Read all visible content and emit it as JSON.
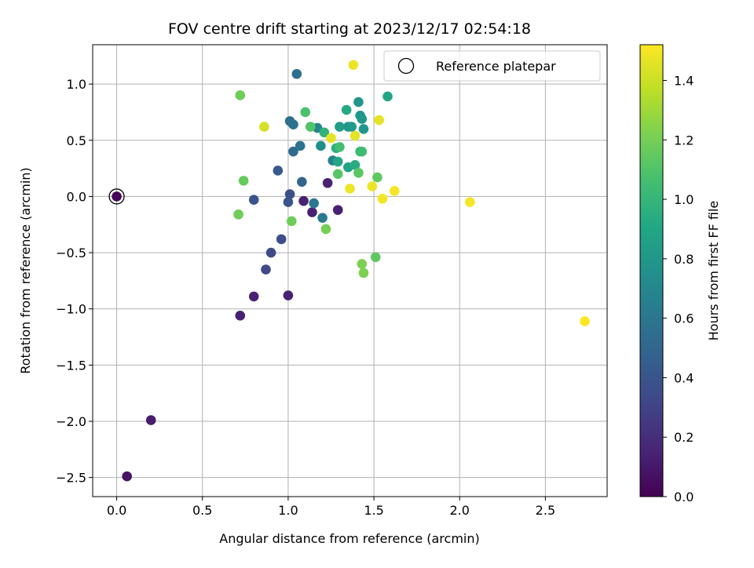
{
  "chart_data": {
    "type": "scatter",
    "title": "FOV centre drift starting at 2023/12/17 02:54:18",
    "xlabel": "Angular distance from reference (arcmin)",
    "ylabel": "Rotation from reference (arcmin)",
    "colorbar_label": "Hours from first FF file",
    "xlim": [
      -0.14,
      2.86
    ],
    "ylim": [
      -2.67,
      1.35
    ],
    "clim": [
      0.0,
      1.52
    ],
    "xticks": [
      "0.0",
      "0.5",
      "1.0",
      "1.5",
      "2.0",
      "2.5"
    ],
    "xtick_values": [
      0.0,
      0.5,
      1.0,
      1.5,
      2.0,
      2.5
    ],
    "yticks": [
      "−2.5",
      "−2.0",
      "−1.5",
      "−1.0",
      "−0.5",
      "0.0",
      "0.5",
      "1.0"
    ],
    "ytick_values": [
      -2.5,
      -2.0,
      -1.5,
      -1.0,
      -0.5,
      0.0,
      0.5,
      1.0
    ],
    "cbar_ticks": [
      "0.0",
      "0.2",
      "0.4",
      "0.6",
      "0.8",
      "1.0",
      "1.2",
      "1.4"
    ],
    "cbar_tick_values": [
      0.0,
      0.2,
      0.4,
      0.6,
      0.8,
      1.0,
      1.2,
      1.4
    ],
    "grid": true,
    "colormap": "viridis",
    "legend": {
      "label": "Reference platepar",
      "position": "upper right"
    },
    "reference_point": {
      "x": 0.0,
      "y": 0.0
    },
    "points": [
      {
        "x": 0.0,
        "y": 0.0,
        "c": 0.02
      },
      {
        "x": 0.06,
        "y": -2.49,
        "c": 0.08
      },
      {
        "x": 0.2,
        "y": -1.99,
        "c": 0.12
      },
      {
        "x": 0.72,
        "y": -1.06,
        "c": 0.14
      },
      {
        "x": 0.8,
        "y": -0.89,
        "c": 0.14
      },
      {
        "x": 1.0,
        "y": -0.88,
        "c": 0.14
      },
      {
        "x": 1.09,
        "y": -0.04,
        "c": 0.14
      },
      {
        "x": 1.14,
        "y": -0.14,
        "c": 0.14
      },
      {
        "x": 1.23,
        "y": 0.12,
        "c": 0.14
      },
      {
        "x": 1.29,
        "y": -0.12,
        "c": 0.14
      },
      {
        "x": 0.87,
        "y": -0.65,
        "c": 0.34
      },
      {
        "x": 0.9,
        "y": -0.5,
        "c": 0.34
      },
      {
        "x": 0.96,
        "y": -0.38,
        "c": 0.36
      },
      {
        "x": 1.01,
        "y": 0.02,
        "c": 0.36
      },
      {
        "x": 0.8,
        "y": -0.03,
        "c": 0.4
      },
      {
        "x": 1.0,
        "y": -0.05,
        "c": 0.4
      },
      {
        "x": 0.94,
        "y": 0.23,
        "c": 0.42
      },
      {
        "x": 1.08,
        "y": 0.13,
        "c": 0.5
      },
      {
        "x": 1.03,
        "y": 0.4,
        "c": 0.52
      },
      {
        "x": 1.05,
        "y": 1.09,
        "c": 0.55
      },
      {
        "x": 1.01,
        "y": 0.67,
        "c": 0.55
      },
      {
        "x": 1.03,
        "y": 0.64,
        "c": 0.56
      },
      {
        "x": 1.07,
        "y": 0.45,
        "c": 0.58
      },
      {
        "x": 1.15,
        "y": -0.06,
        "c": 0.6
      },
      {
        "x": 1.2,
        "y": -0.19,
        "c": 0.62
      },
      {
        "x": 1.26,
        "y": 0.32,
        "c": 0.66
      },
      {
        "x": 1.17,
        "y": 0.61,
        "c": 0.68
      },
      {
        "x": 1.19,
        "y": 0.45,
        "c": 0.74
      },
      {
        "x": 1.35,
        "y": 0.62,
        "c": 0.78
      },
      {
        "x": 1.41,
        "y": 0.84,
        "c": 0.8
      },
      {
        "x": 1.42,
        "y": 0.72,
        "c": 0.8
      },
      {
        "x": 1.43,
        "y": 0.69,
        "c": 0.8
      },
      {
        "x": 1.44,
        "y": 0.6,
        "c": 0.8
      },
      {
        "x": 1.37,
        "y": 0.62,
        "c": 0.82
      },
      {
        "x": 1.3,
        "y": 0.62,
        "c": 0.84
      },
      {
        "x": 1.35,
        "y": 0.26,
        "c": 0.88
      },
      {
        "x": 1.29,
        "y": 0.31,
        "c": 0.9
      },
      {
        "x": 1.58,
        "y": 0.89,
        "c": 0.9
      },
      {
        "x": 1.34,
        "y": 0.77,
        "c": 0.92
      },
      {
        "x": 1.39,
        "y": 0.28,
        "c": 0.94
      },
      {
        "x": 1.28,
        "y": 0.43,
        "c": 0.96
      },
      {
        "x": 1.21,
        "y": 0.57,
        "c": 0.98
      },
      {
        "x": 1.42,
        "y": 0.4,
        "c": 1.02
      },
      {
        "x": 1.43,
        "y": 0.4,
        "c": 1.04
      },
      {
        "x": 1.3,
        "y": 0.44,
        "c": 1.06
      },
      {
        "x": 1.1,
        "y": 0.75,
        "c": 1.08
      },
      {
        "x": 1.13,
        "y": 0.62,
        "c": 1.1
      },
      {
        "x": 1.29,
        "y": 0.2,
        "c": 1.12
      },
      {
        "x": 1.41,
        "y": 0.21,
        "c": 1.12
      },
      {
        "x": 1.52,
        "y": 0.17,
        "c": 1.14
      },
      {
        "x": 1.51,
        "y": -0.54,
        "c": 1.14
      },
      {
        "x": 0.74,
        "y": 0.14,
        "c": 1.16
      },
      {
        "x": 0.71,
        "y": -0.16,
        "c": 1.18
      },
      {
        "x": 0.72,
        "y": 0.9,
        "c": 1.18
      },
      {
        "x": 1.02,
        "y": -0.22,
        "c": 1.18
      },
      {
        "x": 1.22,
        "y": -0.29,
        "c": 1.2
      },
      {
        "x": 1.43,
        "y": -0.6,
        "c": 1.22
      },
      {
        "x": 1.44,
        "y": -0.68,
        "c": 1.22
      },
      {
        "x": 0.86,
        "y": 0.62,
        "c": 1.42
      },
      {
        "x": 1.25,
        "y": 0.52,
        "c": 1.46
      },
      {
        "x": 1.39,
        "y": 0.54,
        "c": 1.46
      },
      {
        "x": 1.53,
        "y": 0.68,
        "c": 1.46
      },
      {
        "x": 1.38,
        "y": 1.17,
        "c": 1.48
      },
      {
        "x": 1.36,
        "y": 0.07,
        "c": 1.48
      },
      {
        "x": 1.49,
        "y": 0.09,
        "c": 1.48
      },
      {
        "x": 1.55,
        "y": -0.02,
        "c": 1.5
      },
      {
        "x": 1.62,
        "y": 0.05,
        "c": 1.5
      },
      {
        "x": 2.06,
        "y": -0.05,
        "c": 1.5
      },
      {
        "x": 2.73,
        "y": -1.11,
        "c": 1.52
      }
    ]
  }
}
